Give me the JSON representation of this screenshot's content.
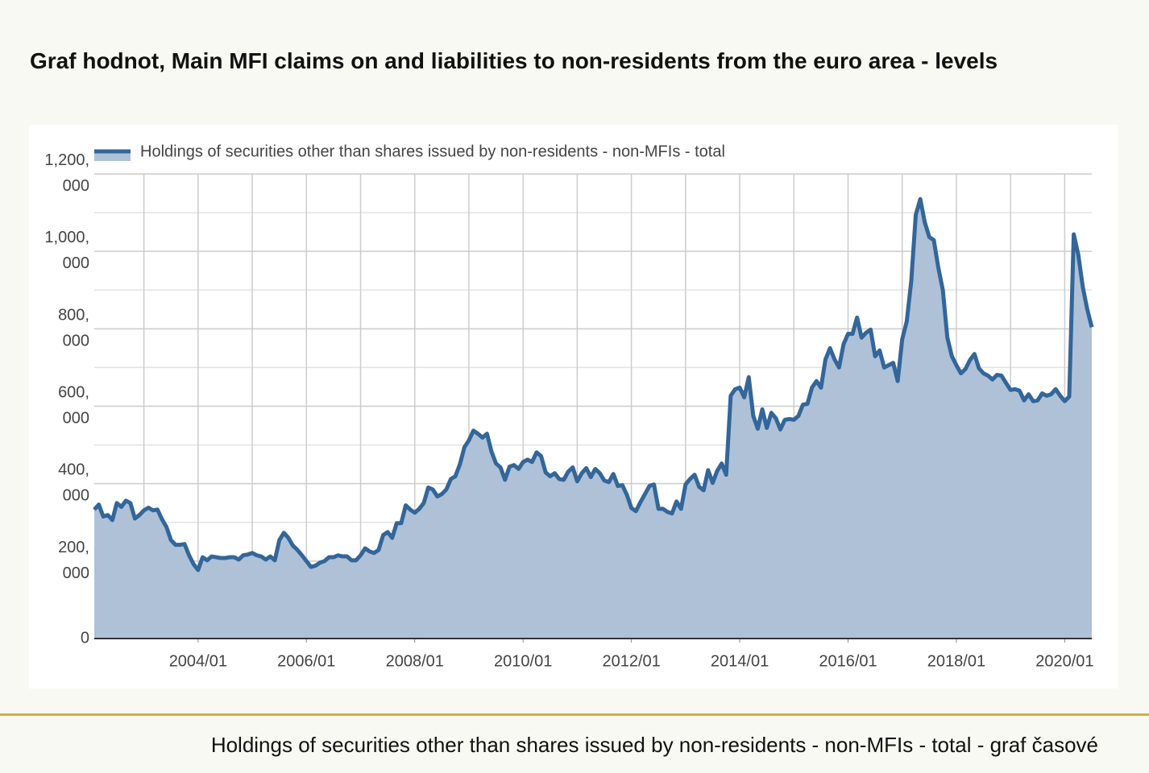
{
  "title": "Graf hodnot, Main MFI claims on and liabilities to non-residents from the euro area - levels",
  "chart_data": {
    "type": "area",
    "x": [
      "2002/02",
      "2002/03",
      "2002/04",
      "2002/05",
      "2002/06",
      "2002/07",
      "2002/08",
      "2002/09",
      "2002/10",
      "2002/11",
      "2002/12",
      "2003/01",
      "2003/02",
      "2003/03",
      "2003/04",
      "2003/05",
      "2003/06",
      "2003/07",
      "2003/08",
      "2003/09",
      "2003/10",
      "2003/11",
      "2003/12",
      "2004/01",
      "2004/02",
      "2004/03",
      "2004/04",
      "2004/05",
      "2004/06",
      "2004/07",
      "2004/08",
      "2004/09",
      "2004/10",
      "2004/11",
      "2004/12",
      "2005/01",
      "2005/02",
      "2005/03",
      "2005/04",
      "2005/05",
      "2005/06",
      "2005/07",
      "2005/08",
      "2005/09",
      "2005/10",
      "2005/11",
      "2005/12",
      "2006/01",
      "2006/02",
      "2006/03",
      "2006/04",
      "2006/05",
      "2006/06",
      "2006/07",
      "2006/08",
      "2006/09",
      "2006/10",
      "2006/11",
      "2006/12",
      "2007/01",
      "2007/02",
      "2007/03",
      "2007/04",
      "2007/05",
      "2007/06",
      "2007/07",
      "2007/08",
      "2007/09",
      "2007/10",
      "2007/11",
      "2007/12",
      "2008/01",
      "2008/02",
      "2008/03",
      "2008/04",
      "2008/05",
      "2008/06",
      "2008/07",
      "2008/08",
      "2008/09",
      "2008/10",
      "2008/11",
      "2008/12",
      "2009/01",
      "2009/02",
      "2009/03",
      "2009/04",
      "2009/05",
      "2009/06",
      "2009/07",
      "2009/08",
      "2009/09",
      "2009/10",
      "2009/11",
      "2009/12",
      "2010/01",
      "2010/02",
      "2010/03",
      "2010/04",
      "2010/05",
      "2010/06",
      "2010/07",
      "2010/08",
      "2010/09",
      "2010/10",
      "2010/11",
      "2010/12",
      "2011/01",
      "2011/02",
      "2011/03",
      "2011/04",
      "2011/05",
      "2011/06",
      "2011/07",
      "2011/08",
      "2011/09",
      "2011/10",
      "2011/11",
      "2011/12",
      "2012/01",
      "2012/02",
      "2012/03",
      "2012/04",
      "2012/05",
      "2012/06",
      "2012/07",
      "2012/08",
      "2012/09",
      "2012/10",
      "2012/11",
      "2012/12",
      "2013/01",
      "2013/02",
      "2013/03",
      "2013/04",
      "2013/05",
      "2013/06",
      "2013/07",
      "2013/08",
      "2013/09",
      "2013/10",
      "2013/11",
      "2013/12",
      "2014/01",
      "2014/02",
      "2014/03",
      "2014/04",
      "2014/05",
      "2014/06",
      "2014/07",
      "2014/08",
      "2014/09",
      "2014/10",
      "2014/11",
      "2014/12",
      "2015/01",
      "2015/02",
      "2015/03",
      "2015/04",
      "2015/05",
      "2015/06",
      "2015/07",
      "2015/08",
      "2015/09",
      "2015/10",
      "2015/11",
      "2015/12",
      "2016/01",
      "2016/02",
      "2016/03",
      "2016/04",
      "2016/05",
      "2016/06",
      "2016/07",
      "2016/08",
      "2016/09",
      "2016/10",
      "2016/11",
      "2016/12",
      "2017/01",
      "2017/02",
      "2017/03",
      "2017/04",
      "2017/05",
      "2017/06",
      "2017/07",
      "2017/08",
      "2017/09",
      "2017/10",
      "2017/11",
      "2017/12",
      "2018/01",
      "2018/02",
      "2018/03",
      "2018/04",
      "2018/05",
      "2018/06",
      "2018/07",
      "2018/08",
      "2018/09",
      "2018/10",
      "2018/11",
      "2018/12",
      "2019/01",
      "2019/02",
      "2019/03",
      "2019/04",
      "2019/05",
      "2019/06",
      "2019/07",
      "2019/08",
      "2019/09",
      "2019/10",
      "2019/11",
      "2019/12",
      "2020/01",
      "2020/02",
      "2020/03",
      "2020/04",
      "2020/05",
      "2020/06",
      "2020/07"
    ],
    "series": [
      {
        "name": "Holdings of securities other than shares issued by non-residents - non-MFIs - total",
        "color": "#336699",
        "fill": "#aec1d7",
        "values": [
          333000,
          346000,
          315000,
          319000,
          306000,
          350000,
          340000,
          356000,
          350000,
          310000,
          319000,
          331000,
          338000,
          331000,
          333000,
          308000,
          288000,
          254000,
          242000,
          242000,
          244000,
          215000,
          192000,
          177000,
          210000,
          202000,
          212000,
          210000,
          208000,
          208000,
          210000,
          210000,
          204000,
          215000,
          217000,
          221000,
          215000,
          212000,
          204000,
          212000,
          202000,
          254000,
          273000,
          260000,
          240000,
          229000,
          215000,
          200000,
          185000,
          188000,
          196000,
          200000,
          210000,
          210000,
          215000,
          212000,
          212000,
          202000,
          202000,
          215000,
          233000,
          225000,
          221000,
          229000,
          267000,
          275000,
          260000,
          298000,
          298000,
          344000,
          333000,
          325000,
          335000,
          350000,
          390000,
          385000,
          367000,
          373000,
          385000,
          412000,
          419000,
          450000,
          494000,
          512000,
          537000,
          529000,
          519000,
          529000,
          483000,
          452000,
          442000,
          410000,
          444000,
          448000,
          438000,
          456000,
          462000,
          456000,
          481000,
          471000,
          429000,
          419000,
          427000,
          412000,
          410000,
          431000,
          442000,
          406000,
          427000,
          440000,
          417000,
          438000,
          427000,
          408000,
          404000,
          425000,
          394000,
          396000,
          371000,
          337000,
          329000,
          352000,
          373000,
          394000,
          398000,
          335000,
          335000,
          327000,
          323000,
          354000,
          335000,
          398000,
          412000,
          423000,
          392000,
          383000,
          435000,
          402000,
          433000,
          452000,
          423000,
          627000,
          644000,
          648000,
          623000,
          675000,
          575000,
          542000,
          592000,
          544000,
          583000,
          569000,
          540000,
          565000,
          567000,
          565000,
          575000,
          604000,
          606000,
          648000,
          665000,
          648000,
          721000,
          750000,
          721000,
          700000,
          760000,
          787000,
          787000,
          829000,
          777000,
          790000,
          798000,
          729000,
          744000,
          700000,
          706000,
          712000,
          665000,
          773000,
          819000,
          923000,
          1094000,
          1135000,
          1075000,
          1037000,
          1029000,
          958000,
          900000,
          777000,
          729000,
          706000,
          685000,
          696000,
          719000,
          735000,
          698000,
          685000,
          679000,
          669000,
          681000,
          679000,
          660000,
          642000,
          644000,
          640000,
          615000,
          631000,
          613000,
          615000,
          633000,
          627000,
          631000,
          644000,
          627000,
          613000,
          625000,
          1044000,
          992000,
          908000,
          850000,
          804000
        ]
      }
    ],
    "ylim": [
      0,
      1200000
    ],
    "yticks": [
      0,
      {
        "value": 200000,
        "label": "200,000"
      },
      {
        "value": 400000,
        "label": "400,000"
      },
      {
        "value": 600000,
        "label": "600,000"
      },
      {
        "value": 800000,
        "label": "800,000"
      },
      {
        "value": 1000000,
        "label": "1,000,000"
      },
      {
        "value": 1200000,
        "label": "1,200,000"
      }
    ],
    "xticks": [
      "2004/01",
      "2006/01",
      "2008/01",
      "2010/01",
      "2012/01",
      "2014/01",
      "2016/01",
      "2018/01",
      "2020/01"
    ],
    "grid": true,
    "legend": "top-left"
  },
  "footer": "Holdings of securities other than shares issued by non-residents - non-MFIs - total - graf časové"
}
